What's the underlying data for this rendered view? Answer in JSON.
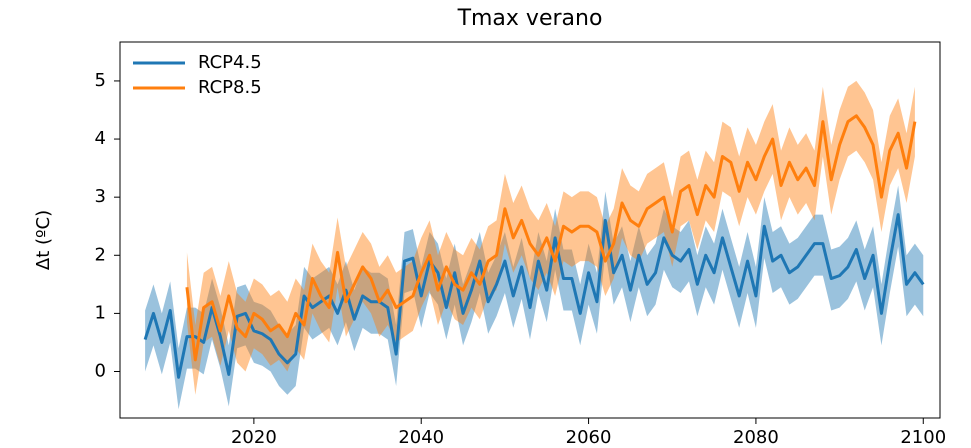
{
  "chart_data": {
    "type": "line",
    "title": "Tmax verano",
    "ylabel": "Δt (ºC)",
    "x": [
      2007,
      2008,
      2009,
      2010,
      2011,
      2012,
      2013,
      2014,
      2015,
      2016,
      2017,
      2018,
      2019,
      2020,
      2021,
      2022,
      2023,
      2024,
      2025,
      2026,
      2027,
      2028,
      2029,
      2030,
      2031,
      2032,
      2033,
      2034,
      2035,
      2036,
      2037,
      2038,
      2039,
      2040,
      2041,
      2042,
      2043,
      2044,
      2045,
      2046,
      2047,
      2048,
      2049,
      2050,
      2051,
      2052,
      2053,
      2054,
      2055,
      2056,
      2057,
      2058,
      2059,
      2060,
      2061,
      2062,
      2063,
      2064,
      2065,
      2066,
      2067,
      2068,
      2069,
      2070,
      2071,
      2072,
      2073,
      2074,
      2075,
      2076,
      2077,
      2078,
      2079,
      2080,
      2081,
      2082,
      2083,
      2084,
      2085,
      2086,
      2087,
      2088,
      2089,
      2090,
      2091,
      2092,
      2093,
      2094,
      2095,
      2096,
      2097,
      2098,
      2099,
      2100
    ],
    "series": [
      {
        "name": "RCP4.5",
        "color": "#1f77b4",
        "values": [
          0.55,
          1.0,
          0.5,
          1.05,
          -0.1,
          0.6,
          0.6,
          0.5,
          1.1,
          0.6,
          -0.05,
          0.95,
          1.0,
          0.7,
          0.65,
          0.55,
          0.3,
          0.15,
          0.3,
          1.3,
          1.1,
          1.2,
          1.3,
          1.0,
          1.4,
          0.9,
          1.3,
          1.2,
          1.2,
          1.1,
          0.3,
          1.9,
          1.95,
          1.3,
          1.9,
          1.7,
          1.1,
          1.7,
          1.0,
          1.4,
          1.9,
          1.2,
          1.5,
          1.9,
          1.3,
          1.8,
          1.1,
          1.9,
          1.4,
          2.3,
          1.6,
          1.6,
          1.0,
          1.7,
          1.2,
          2.6,
          1.7,
          2.0,
          1.4,
          2.0,
          1.5,
          1.7,
          2.3,
          2.0,
          1.9,
          2.1,
          1.5,
          2.0,
          1.7,
          2.3,
          1.8,
          1.3,
          1.9,
          1.3,
          2.5,
          1.9,
          2.0,
          1.7,
          1.8,
          2.0,
          2.2,
          2.2,
          1.6,
          1.65,
          1.8,
          2.1,
          1.6,
          2.0,
          1.0,
          1.9,
          2.7,
          1.5,
          1.7,
          1.5
        ],
        "lower": [
          0,
          0.45,
          -0.05,
          0.5,
          -0.65,
          0.05,
          0.05,
          -0.05,
          0.55,
          0.05,
          -0.6,
          0.4,
          0.45,
          0.15,
          0.1,
          0,
          -0.25,
          -0.4,
          -0.25,
          0.75,
          0.55,
          0.65,
          0.75,
          0.45,
          0.85,
          0.35,
          0.75,
          0.65,
          0.65,
          0.55,
          -0.25,
          1.35,
          1.4,
          0.75,
          1.35,
          1.15,
          0.55,
          1.15,
          0.45,
          0.85,
          1.35,
          0.65,
          0.95,
          1.35,
          0.75,
          1.25,
          0.55,
          1.35,
          0.85,
          1.75,
          1.05,
          1.05,
          0.45,
          1.15,
          0.65,
          2.05,
          1.15,
          1.45,
          0.85,
          1.45,
          0.95,
          1.15,
          1.75,
          1.45,
          1.35,
          1.55,
          0.95,
          1.45,
          1.15,
          1.75,
          1.25,
          0.75,
          1.35,
          0.75,
          1.95,
          1.35,
          1.45,
          1.15,
          1.25,
          1.45,
          1.65,
          1.65,
          1.05,
          1.1,
          1.25,
          1.55,
          1.05,
          1.45,
          0.45,
          1.35,
          2.15,
          0.95,
          1.15,
          0.95
        ],
        "upper": [
          1.05,
          1.5,
          1.0,
          1.55,
          0.4,
          1.1,
          1.1,
          1.0,
          1.6,
          1.1,
          0.45,
          1.45,
          1.5,
          1.2,
          1.15,
          1.05,
          0.8,
          0.65,
          0.8,
          1.8,
          1.6,
          1.7,
          1.8,
          1.5,
          1.9,
          1.4,
          1.8,
          1.7,
          1.7,
          1.6,
          0.8,
          2.4,
          2.45,
          1.8,
          2.4,
          2.2,
          1.6,
          2.2,
          1.5,
          1.9,
          2.4,
          1.7,
          2.0,
          2.4,
          1.8,
          2.3,
          1.6,
          2.4,
          1.9,
          2.8,
          2.1,
          2.1,
          1.5,
          2.2,
          1.7,
          3.1,
          2.2,
          2.5,
          1.9,
          2.5,
          2.0,
          2.2,
          2.8,
          2.5,
          2.4,
          2.6,
          2.0,
          2.5,
          2.2,
          2.8,
          2.3,
          1.8,
          2.4,
          1.8,
          3.0,
          2.4,
          2.5,
          2.2,
          2.3,
          2.5,
          2.7,
          2.7,
          2.1,
          2.15,
          2.3,
          2.6,
          2.1,
          2.5,
          1.5,
          2.4,
          3.2,
          2.0,
          2.2,
          2.0
        ]
      },
      {
        "name": "RCP8.5",
        "color": "#ff7f0e",
        "values": [
          null,
          null,
          null,
          null,
          null,
          1.45,
          0.2,
          1.1,
          1.2,
          0.7,
          1.3,
          0.75,
          0.6,
          1.0,
          0.9,
          0.7,
          0.8,
          0.6,
          1.0,
          0.8,
          1.6,
          1.3,
          1.1,
          2.05,
          1.2,
          1.5,
          1.8,
          1.6,
          1.2,
          1.4,
          1.1,
          1.2,
          1.3,
          1.7,
          2.0,
          1.4,
          1.8,
          1.5,
          1.4,
          1.7,
          1.5,
          1.9,
          2.0,
          2.8,
          2.3,
          2.6,
          2.2,
          2.0,
          2.3,
          1.9,
          2.5,
          2.4,
          2.5,
          2.5,
          2.4,
          1.9,
          2.2,
          2.9,
          2.6,
          2.5,
          2.8,
          2.9,
          3.0,
          2.4,
          3.1,
          3.2,
          2.7,
          3.2,
          3.0,
          3.7,
          3.6,
          3.1,
          3.6,
          3.3,
          3.7,
          4.0,
          3.2,
          3.6,
          3.3,
          3.5,
          3.2,
          4.3,
          3.3,
          3.9,
          4.3,
          4.4,
          4.2,
          3.9,
          3.0,
          3.8,
          4.1,
          3.5,
          4.3,
          null
        ],
        "lower": [
          null,
          null,
          null,
          null,
          null,
          0.85,
          -0.4,
          0.5,
          0.6,
          0.1,
          0.7,
          0.15,
          0,
          0.4,
          0.3,
          0.1,
          0.2,
          0,
          0.4,
          0.2,
          1.0,
          0.7,
          0.5,
          1.45,
          0.6,
          0.9,
          1.2,
          1.0,
          0.6,
          0.8,
          0.5,
          0.6,
          0.7,
          1.1,
          1.4,
          0.8,
          1.2,
          0.9,
          0.8,
          1.1,
          0.9,
          1.3,
          1.4,
          2.2,
          1.7,
          2.0,
          1.6,
          1.4,
          1.7,
          1.3,
          1.9,
          1.8,
          1.9,
          1.9,
          1.8,
          1.3,
          1.6,
          2.3,
          2.0,
          1.9,
          2.2,
          2.3,
          2.4,
          1.8,
          2.5,
          2.6,
          2.1,
          2.6,
          2.4,
          3.1,
          3.0,
          2.5,
          3.0,
          2.7,
          3.1,
          3.4,
          2.6,
          3.0,
          2.7,
          2.9,
          2.6,
          3.7,
          2.7,
          3.3,
          3.7,
          3.8,
          3.6,
          3.3,
          2.4,
          3.2,
          3.5,
          2.9,
          3.7,
          null
        ],
        "upper": [
          null,
          null,
          null,
          null,
          null,
          2.05,
          0.8,
          1.7,
          1.8,
          1.3,
          1.9,
          1.35,
          1.2,
          1.6,
          1.5,
          1.3,
          1.4,
          1.2,
          1.6,
          1.4,
          2.2,
          1.9,
          1.7,
          2.65,
          1.8,
          2.1,
          2.4,
          2.2,
          1.8,
          2.0,
          1.7,
          1.8,
          1.9,
          2.3,
          2.6,
          2.0,
          2.4,
          2.1,
          2.0,
          2.3,
          2.1,
          2.5,
          2.6,
          3.4,
          2.9,
          3.2,
          2.8,
          2.6,
          2.9,
          2.5,
          3.1,
          3.0,
          3.1,
          3.1,
          3.0,
          2.5,
          2.8,
          3.5,
          3.2,
          3.1,
          3.4,
          3.5,
          3.6,
          3.0,
          3.7,
          3.8,
          3.3,
          3.8,
          3.6,
          4.3,
          4.2,
          3.7,
          4.2,
          3.9,
          4.3,
          4.6,
          3.8,
          4.2,
          3.9,
          4.1,
          3.8,
          4.9,
          3.9,
          4.5,
          4.9,
          5.0,
          4.8,
          4.5,
          3.6,
          4.4,
          4.7,
          4.1,
          4.9,
          null
        ]
      }
    ],
    "xlim": [
      2004,
      2102
    ],
    "ylim": [
      -0.8,
      5.67
    ],
    "xticks": [
      2020,
      2040,
      2060,
      2080,
      2100
    ],
    "yticks": [
      0,
      1,
      2,
      3,
      4,
      5
    ],
    "grid": false,
    "legend": "upper left"
  }
}
